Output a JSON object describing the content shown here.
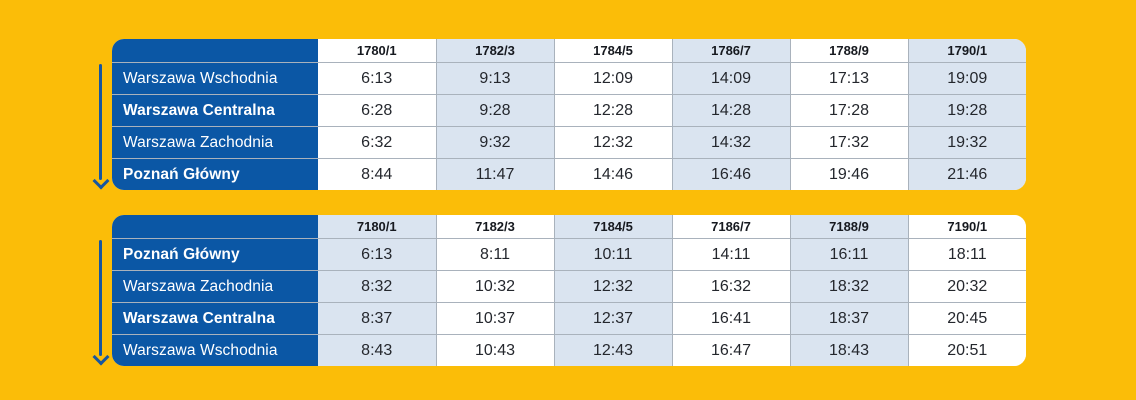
{
  "colors": {
    "background": "#FBBD08",
    "primary_blue": "#0B57A5",
    "arrow_blue": "#1656A0",
    "shaded_cell": "#DAE4F0",
    "grid_line": "#A9B2BC",
    "time_text": "#24272D",
    "header_text": "#16191F",
    "station_text": "#FFFFFF",
    "cell_white": "#FFFFFF"
  },
  "icons": {
    "direction_arrow": "down-arrow"
  },
  "chart_data": [
    {
      "type": "table",
      "title": "",
      "direction": "down",
      "columns": [
        "1780/1",
        "1782/3",
        "1784/5",
        "1786/7",
        "1788/9",
        "1790/1"
      ],
      "shaded_columns": [
        1,
        3,
        5
      ],
      "rows": [
        {
          "station": "Warszawa Wschodnia",
          "emphasis": false,
          "times": [
            "6:13",
            "9:13",
            "12:09",
            "14:09",
            "17:13",
            "19:09"
          ]
        },
        {
          "station": "Warszawa Centralna",
          "emphasis": true,
          "times": [
            "6:28",
            "9:28",
            "12:28",
            "14:28",
            "17:28",
            "19:28"
          ]
        },
        {
          "station": "Warszawa Zachodnia",
          "emphasis": false,
          "times": [
            "6:32",
            "9:32",
            "12:32",
            "14:32",
            "17:32",
            "19:32"
          ]
        },
        {
          "station": "Poznań Główny",
          "emphasis": true,
          "times": [
            "8:44",
            "11:47",
            "14:46",
            "16:46",
            "19:46",
            "21:46"
          ]
        }
      ]
    },
    {
      "type": "table",
      "title": "",
      "direction": "down",
      "columns": [
        "7180/1",
        "7182/3",
        "7184/5",
        "7186/7",
        "7188/9",
        "7190/1"
      ],
      "shaded_columns": [
        0,
        2,
        4
      ],
      "rows": [
        {
          "station": "Poznań Główny",
          "emphasis": true,
          "times": [
            "6:13",
            "8:11",
            "10:11",
            "14:11",
            "16:11",
            "18:11"
          ]
        },
        {
          "station": "Warszawa Zachodnia",
          "emphasis": false,
          "times": [
            "8:32",
            "10:32",
            "12:32",
            "16:32",
            "18:32",
            "20:32"
          ]
        },
        {
          "station": "Warszawa Centralna",
          "emphasis": true,
          "times": [
            "8:37",
            "10:37",
            "12:37",
            "16:41",
            "18:37",
            "20:45"
          ]
        },
        {
          "station": "Warszawa Wschodnia",
          "emphasis": false,
          "times": [
            "8:43",
            "10:43",
            "12:43",
            "16:47",
            "18:43",
            "20:51"
          ]
        }
      ]
    }
  ]
}
